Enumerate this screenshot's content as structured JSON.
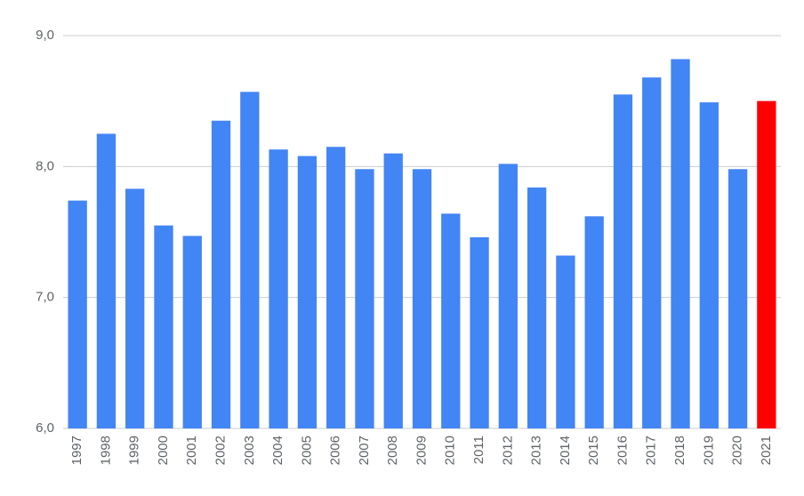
{
  "chart_data": {
    "type": "bar",
    "categories": [
      "1997",
      "1998",
      "1999",
      "2000",
      "2001",
      "2002",
      "2003",
      "2004",
      "2005",
      "2006",
      "2007",
      "2008",
      "2009",
      "2010",
      "2011",
      "2012",
      "2013",
      "2014",
      "2015",
      "2016",
      "2017",
      "2018",
      "2019",
      "2020",
      "2021"
    ],
    "values": [
      7.74,
      8.25,
      7.83,
      7.55,
      7.47,
      8.35,
      8.57,
      8.13,
      8.08,
      8.15,
      7.98,
      8.1,
      7.98,
      7.64,
      7.46,
      8.02,
      7.84,
      7.32,
      7.62,
      8.55,
      8.68,
      8.82,
      8.49,
      7.98,
      8.5
    ],
    "colors": [
      "#4285f4",
      "#4285f4",
      "#4285f4",
      "#4285f4",
      "#4285f4",
      "#4285f4",
      "#4285f4",
      "#4285f4",
      "#4285f4",
      "#4285f4",
      "#4285f4",
      "#4285f4",
      "#4285f4",
      "#4285f4",
      "#4285f4",
      "#4285f4",
      "#4285f4",
      "#4285f4",
      "#4285f4",
      "#4285f4",
      "#4285f4",
      "#4285f4",
      "#4285f4",
      "#4285f4",
      "#ff0000"
    ],
    "ylim": [
      6,
      9
    ],
    "yticks": [
      {
        "value": 6,
        "label": "6,0"
      },
      {
        "value": 7,
        "label": "7,0"
      },
      {
        "value": 8,
        "label": "8,0"
      },
      {
        "value": 9,
        "label": "9,0"
      }
    ],
    "grid": true
  }
}
